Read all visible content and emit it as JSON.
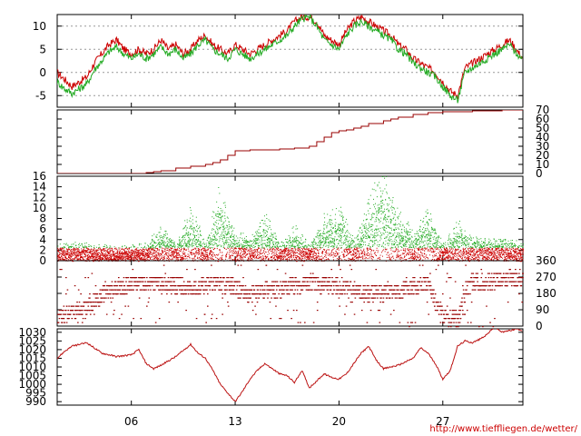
{
  "chart_data": [
    {
      "id": "temperature",
      "type": "line",
      "ylim": [
        -7.5,
        12.5
      ],
      "y_ticks": [
        10,
        5,
        0,
        -5
      ],
      "grid": true,
      "series": [
        {
          "color": "#cc0000",
          "x": [
            1,
            1.5,
            2,
            2.5,
            3,
            3.5,
            4,
            4.5,
            5,
            5.5,
            6,
            6.5,
            7,
            7.5,
            8,
            8.5,
            9,
            9.5,
            10,
            10.5,
            11,
            11.5,
            12,
            12.5,
            13,
            13.5,
            14,
            14.5,
            15,
            15.5,
            16,
            16.5,
            17,
            17.5,
            18,
            18.5,
            19,
            19.5,
            20,
            20.5,
            21,
            21.5,
            22,
            22.5,
            23,
            23.5,
            24,
            24.5,
            25,
            25.5,
            26,
            26.5,
            27,
            27.5,
            28,
            28.5,
            29,
            29.5,
            30,
            30.5,
            31,
            31.5,
            32.4
          ],
          "y": [
            0,
            -1.5,
            -3,
            -2,
            -1,
            2,
            4,
            6,
            7,
            5,
            4,
            5,
            4,
            5,
            7,
            5,
            6,
            4,
            5,
            7,
            8,
            6,
            5,
            4,
            6,
            5,
            4,
            5,
            6,
            7,
            8,
            9,
            11,
            12,
            12,
            11,
            8,
            7,
            6,
            9,
            11,
            12,
            11,
            10,
            9,
            8,
            6,
            5,
            3,
            2,
            1,
            0,
            -2,
            -4,
            -5,
            1,
            2,
            3,
            4,
            5,
            6,
            7,
            3
          ]
        },
        {
          "color": "#22aa22",
          "x": [
            1,
            1.5,
            2,
            2.5,
            3,
            3.5,
            4,
            4.5,
            5,
            5.5,
            6,
            6.5,
            7,
            7.5,
            8,
            8.5,
            9,
            9.5,
            10,
            10.5,
            11,
            11.5,
            12,
            12.5,
            13,
            13.5,
            14,
            14.5,
            15,
            15.5,
            16,
            16.5,
            17,
            17.5,
            18,
            18.5,
            19,
            19.5,
            20,
            20.5,
            21,
            21.5,
            22,
            22.5,
            23,
            23.5,
            24,
            24.5,
            25,
            25.5,
            26,
            26.5,
            27,
            27.5,
            28,
            28.5,
            29,
            29.5,
            30,
            30.5,
            31,
            31.5,
            32.4
          ],
          "y": [
            -2,
            -3.5,
            -4.5,
            -3.5,
            -2.5,
            0.5,
            2.5,
            4.5,
            5.5,
            4,
            3,
            4,
            3,
            4,
            5.5,
            4,
            5,
            3,
            4,
            6,
            7,
            5,
            4,
            3,
            5,
            4,
            3,
            4,
            5,
            6,
            7,
            8,
            10,
            11.5,
            12,
            10,
            7,
            6,
            5,
            8,
            10,
            11,
            10,
            9,
            8,
            7,
            5,
            4,
            2,
            1,
            0,
            -1,
            -3,
            -5,
            -6,
            0,
            1,
            2,
            3,
            4,
            5,
            6,
            2.5
          ]
        }
      ]
    },
    {
      "id": "precipitation",
      "type": "line",
      "ylim": [
        0,
        70
      ],
      "y_ticks": [
        70,
        60,
        50,
        40,
        30,
        20,
        10,
        0
      ],
      "series": [
        {
          "color": "#990000",
          "x": [
            1,
            6.5,
            7,
            7.5,
            8,
            9,
            10,
            11,
            11.5,
            12,
            12.5,
            13,
            14,
            15,
            16,
            17,
            18,
            18.5,
            19,
            19.5,
            20,
            20.5,
            21,
            21.5,
            22,
            23,
            23.5,
            24,
            25,
            26,
            27,
            28,
            29,
            30,
            31,
            32.4
          ],
          "y": [
            0,
            0,
            1,
            2,
            3,
            6,
            8,
            10,
            12,
            15,
            20,
            25,
            26,
            26,
            27,
            28,
            30,
            35,
            40,
            45,
            47,
            48,
            50,
            52,
            55,
            58,
            60,
            62,
            65,
            67,
            68,
            68,
            69,
            69,
            70,
            70
          ]
        }
      ]
    },
    {
      "id": "wind_speed",
      "type": "scatter",
      "ylim": [
        0,
        16
      ],
      "y_ticks": [
        16,
        14,
        12,
        10,
        8,
        6,
        4,
        2,
        0
      ],
      "colors": [
        "#22aa22",
        "#cc0000"
      ],
      "density_peaks": [
        [
          1,
          3
        ],
        [
          3,
          3
        ],
        [
          5,
          2.5
        ],
        [
          7,
          3
        ],
        [
          8,
          6
        ],
        [
          9,
          3
        ],
        [
          10,
          10
        ],
        [
          11,
          3
        ],
        [
          11.8,
          13
        ],
        [
          13,
          5
        ],
        [
          14,
          4
        ],
        [
          15,
          8
        ],
        [
          16,
          3
        ],
        [
          17,
          6
        ],
        [
          18,
          3
        ],
        [
          19,
          8
        ],
        [
          20,
          9
        ],
        [
          21,
          4
        ],
        [
          22,
          11
        ],
        [
          23,
          16
        ],
        [
          24,
          9
        ],
        [
          25,
          5
        ],
        [
          26,
          9
        ],
        [
          27,
          3
        ],
        [
          28,
          7
        ],
        [
          29,
          4
        ],
        [
          30,
          4
        ],
        [
          31,
          4
        ],
        [
          32.4,
          3
        ]
      ]
    },
    {
      "id": "wind_direction",
      "type": "scatter",
      "ylim": [
        0,
        360
      ],
      "y_ticks": [
        360,
        270,
        180,
        90,
        0
      ],
      "color": "#990000",
      "dominant_direction": [
        [
          1,
          60
        ],
        [
          2,
          80
        ],
        [
          3,
          100
        ],
        [
          4,
          180
        ],
        [
          5,
          210
        ],
        [
          6,
          240
        ],
        [
          8,
          240
        ],
        [
          10,
          210
        ],
        [
          12,
          240
        ],
        [
          14,
          180
        ],
        [
          16,
          210
        ],
        [
          18,
          240
        ],
        [
          20,
          220
        ],
        [
          22,
          180
        ],
        [
          24,
          200
        ],
        [
          26,
          240
        ],
        [
          26.5,
          120
        ],
        [
          27,
          60
        ],
        [
          28,
          40
        ],
        [
          28.5,
          200
        ],
        [
          29,
          240
        ],
        [
          30,
          250
        ],
        [
          31,
          260
        ],
        [
          32.4,
          270
        ]
      ]
    },
    {
      "id": "pressure",
      "type": "line",
      "ylim": [
        988,
        1032
      ],
      "y_ticks": [
        1030,
        1025,
        1020,
        1015,
        1010,
        1005,
        1000,
        995,
        990
      ],
      "series": [
        {
          "color": "#bb1111",
          "x": [
            1,
            1.5,
            2,
            3,
            3.5,
            4,
            5,
            6,
            6.5,
            7,
            7.5,
            8,
            9,
            10,
            10.5,
            11,
            11.5,
            12,
            12.5,
            13,
            13.5,
            14,
            14.5,
            15,
            15.5,
            16,
            16.5,
            17,
            17.5,
            18,
            18.5,
            19,
            19.5,
            20,
            20.5,
            21,
            21.5,
            22,
            22.5,
            23,
            24,
            25,
            25.5,
            26,
            26.5,
            27,
            27.5,
            28,
            28.5,
            29,
            29.5,
            30,
            30.5,
            31,
            31.5,
            32,
            32.4
          ],
          "y": [
            1015,
            1019,
            1022,
            1024,
            1021,
            1018,
            1016,
            1017,
            1020,
            1012,
            1009,
            1011,
            1016,
            1023,
            1018,
            1015,
            1008,
            1000,
            995,
            990,
            996,
            1003,
            1008,
            1012,
            1009,
            1006,
            1005,
            1001,
            1008,
            998,
            1002,
            1006,
            1004,
            1003,
            1006,
            1012,
            1018,
            1022,
            1014,
            1009,
            1011,
            1015,
            1021,
            1018,
            1012,
            1003,
            1008,
            1022,
            1025,
            1024,
            1026,
            1029,
            1033,
            1030,
            1031,
            1032,
            1031
          ]
        }
      ]
    }
  ],
  "x_axis": {
    "xlim": [
      1,
      32.4
    ],
    "ticks": [
      {
        "x": 6,
        "label": "06"
      },
      {
        "x": 13,
        "label": "13"
      },
      {
        "x": 20,
        "label": "20"
      },
      {
        "x": 27,
        "label": "27"
      }
    ]
  },
  "footer": {
    "url": "http://www.tiefflieg en.de/wetter/"
  }
}
